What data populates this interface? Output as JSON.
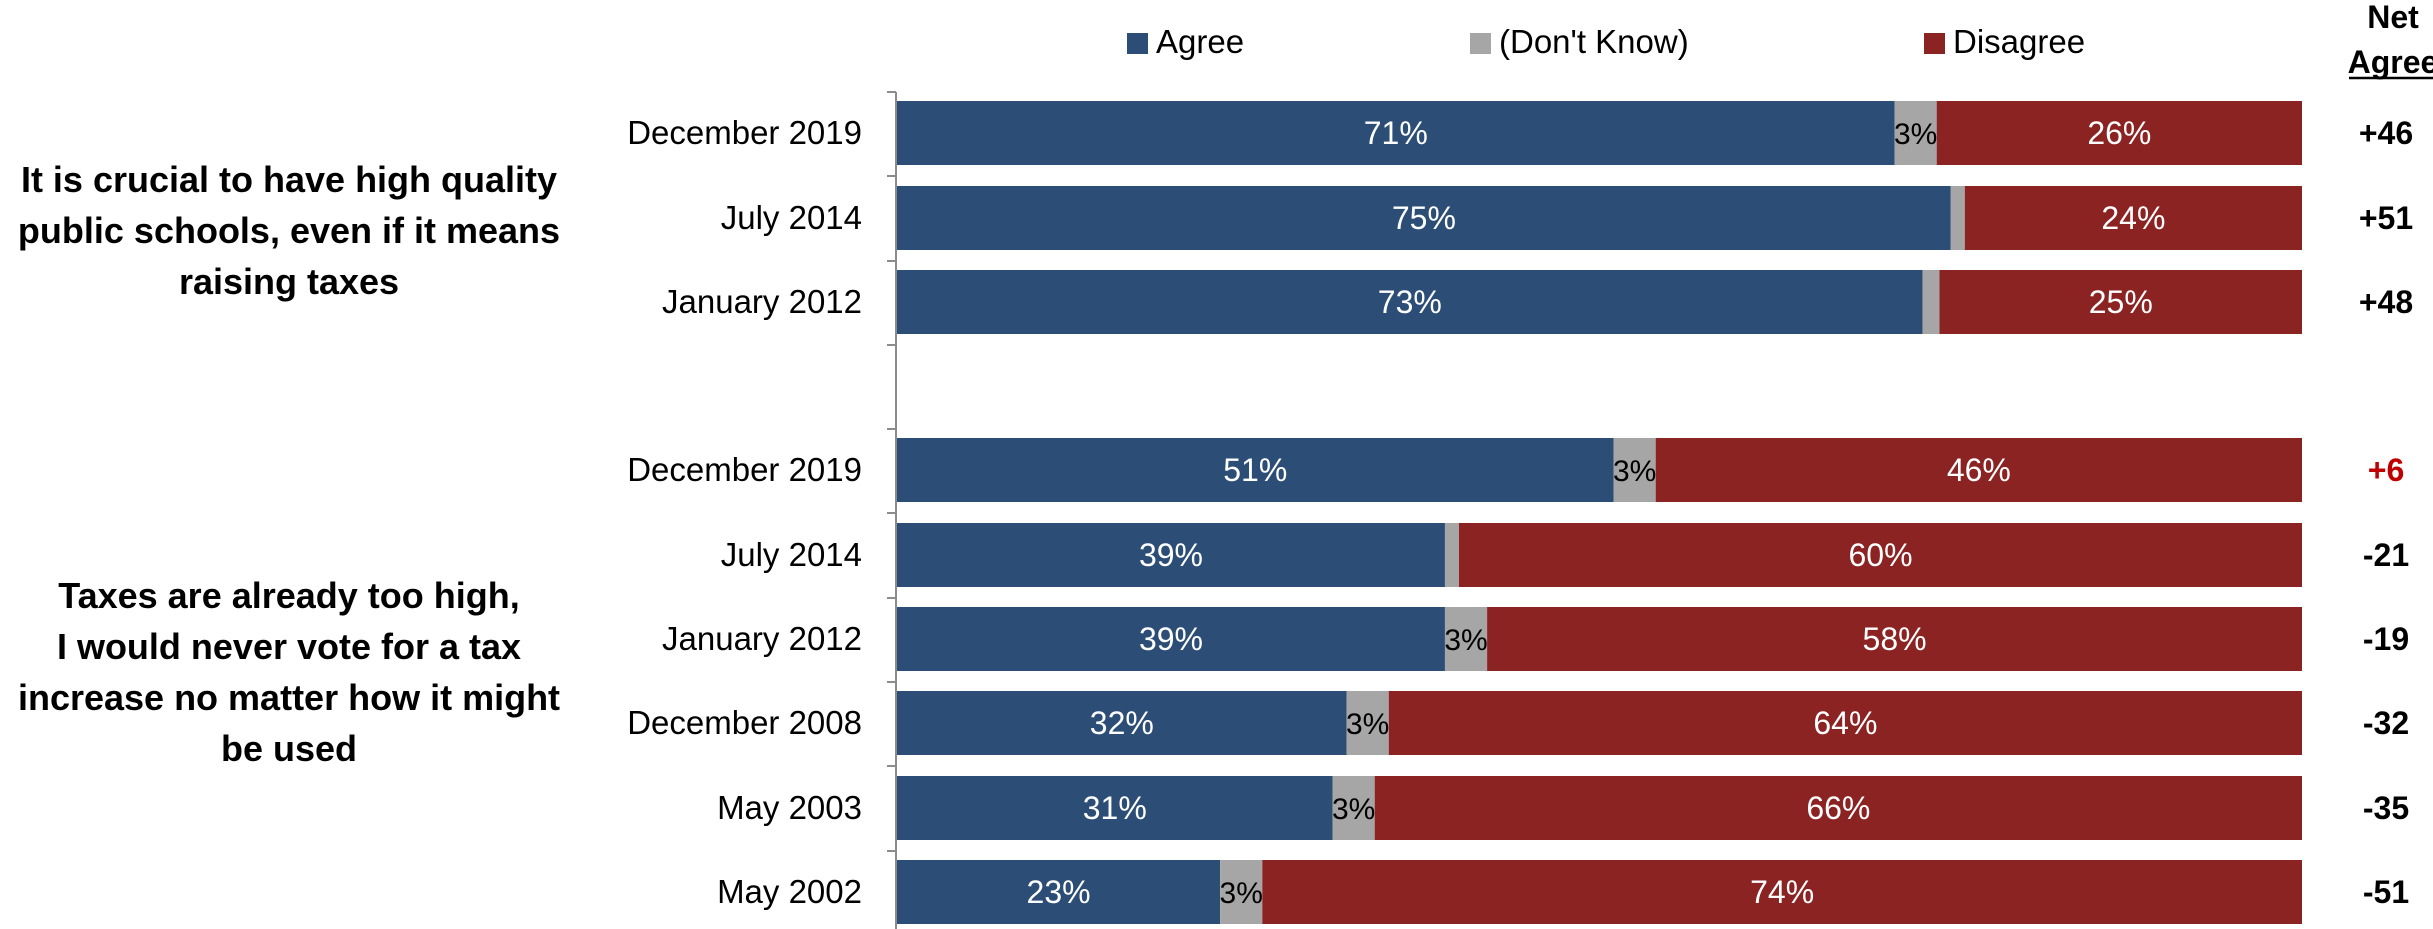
{
  "chart_data": {
    "type": "bar",
    "orientation": "horizontal",
    "stacked": true,
    "legend_position": "top",
    "legend": [
      "Agree",
      "(Don't Know)",
      "Disagree"
    ],
    "net_header": [
      "Net",
      "Agree"
    ],
    "colors": {
      "Agree": "#2c4e76",
      "(Don't Know)": "#a6a6a6",
      "Disagree": "#8c2323",
      "net_highlight": "#c00000"
    },
    "groups": [
      {
        "question_lines": [
          "It is crucial to have high quality",
          "public schools, even if it means",
          "raising taxes"
        ],
        "rows": [
          {
            "label": "December 2019",
            "agree": 71,
            "dont_know": 3,
            "disagree": 26,
            "net": "+46",
            "highlight": false
          },
          {
            "label": "July 2014",
            "agree": 75,
            "dont_know": 1,
            "disagree": 24,
            "net": "+51",
            "highlight": false
          },
          {
            "label": "January 2012",
            "agree": 73,
            "dont_know": 1.2,
            "disagree": 25,
            "net": "+48",
            "highlight": false
          }
        ]
      },
      {
        "question_lines": [
          "Taxes are already too high,",
          "I would never vote for a tax",
          "increase no matter how it might",
          "be used"
        ],
        "rows": [
          {
            "label": "December 2019",
            "agree": 51,
            "dont_know": 3,
            "disagree": 46,
            "net": "+6",
            "highlight": true
          },
          {
            "label": "July 2014",
            "agree": 39,
            "dont_know": 1,
            "disagree": 60,
            "net": "-21",
            "highlight": false
          },
          {
            "label": "January 2012",
            "agree": 39,
            "dont_know": 3,
            "disagree": 58,
            "net": "-19",
            "highlight": false
          },
          {
            "label": "December 2008",
            "agree": 32,
            "dont_know": 3,
            "disagree": 64,
            "net": "-32",
            "highlight": false
          },
          {
            "label": "May 2003",
            "agree": 31,
            "dont_know": 3,
            "disagree": 66,
            "net": "-35",
            "highlight": false
          },
          {
            "label": "May 2002",
            "agree": 23,
            "dont_know": 3,
            "disagree": 74,
            "net": "-51",
            "highlight": false
          }
        ]
      }
    ]
  }
}
